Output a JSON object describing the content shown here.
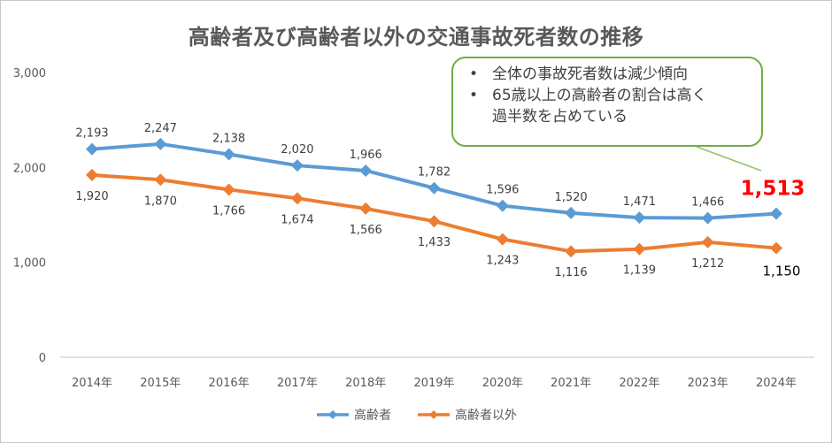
{
  "chart_data": {
    "type": "line",
    "title": "高齢者及び高齢者以外の交通事故死者数の推移",
    "categories": [
      "2014年",
      "2015年",
      "2016年",
      "2017年",
      "2018年",
      "2019年",
      "2020年",
      "2021年",
      "2022年",
      "2023年",
      "2024年"
    ],
    "series": [
      {
        "name": "高齢者",
        "color": "#5b9bd5",
        "values": [
          2193,
          2247,
          2138,
          2020,
          1966,
          1782,
          1596,
          1520,
          1471,
          1466,
          1513
        ],
        "labels": [
          "2,193",
          "2,247",
          "2,138",
          "2,020",
          "1,966",
          "1,782",
          "1,596",
          "1,520",
          "1,471",
          "1,466",
          "1,513"
        ]
      },
      {
        "name": "高齢者以外",
        "color": "#ed7d31",
        "values": [
          1920,
          1870,
          1766,
          1674,
          1566,
          1433,
          1243,
          1116,
          1139,
          1212,
          1150
        ],
        "labels": [
          "1,920",
          "1,870",
          "1,766",
          "1,674",
          "1,566",
          "1,433",
          "1,243",
          "1,116",
          "1,139",
          "1,212",
          "1,150"
        ]
      }
    ],
    "ylim": [
      0,
      3000
    ],
    "yticks": [
      0,
      1000,
      2000,
      3000
    ],
    "ytick_labels": [
      "0",
      "1,000",
      "2,000",
      "3,000"
    ],
    "xlabel": "",
    "ylabel": "",
    "grid": false,
    "legend_position": "bottom",
    "highlight_color": "#ff0000"
  },
  "callout": {
    "bullets": [
      "全体の事故死者数は減少傾向",
      "65歳以上の高齢者の割合は高く"
    ],
    "continuation": "過半数を占めている",
    "border_color": "#70ad47"
  }
}
